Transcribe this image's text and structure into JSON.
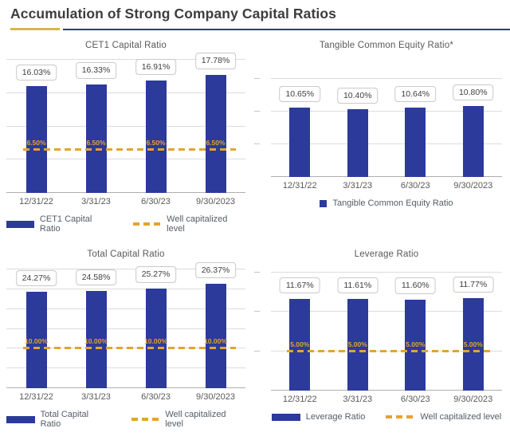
{
  "page": {
    "title": "Accumulation of Strong Company Capital Ratios"
  },
  "colors": {
    "bar": "#2b3a9b",
    "gold": "#e3a42f",
    "underline_gold": "#d9b64a",
    "underline_navy": "#2c3a8c"
  },
  "chart_data": [
    {
      "id": "cet1",
      "type": "bar",
      "title": "CET1 Capital Ratio",
      "categories": [
        "12/31/22",
        "3/31/23",
        "6/30/23",
        "9/30/2023"
      ],
      "values": [
        16.03,
        16.33,
        16.91,
        17.78
      ],
      "value_labels": [
        "16.03%",
        "16.33%",
        "16.91%",
        "17.78%"
      ],
      "ylim": [
        0,
        20
      ],
      "grid_step": 5,
      "grid": "on",
      "threshold": {
        "value": 6.5,
        "label": "6.50%"
      },
      "legend_position": "bottom",
      "legend": [
        {
          "swatch": "bar-wide",
          "label": "CET1 Capital Ratio"
        },
        {
          "swatch": "dash",
          "label": "Well capitalized level"
        }
      ]
    },
    {
      "id": "tce",
      "type": "bar",
      "title": "Tangible Common Equity Ratio*",
      "categories": [
        "12/31/22",
        "3/31/23",
        "6/30/23",
        "9/30/2023"
      ],
      "values": [
        10.65,
        10.4,
        10.64,
        10.8
      ],
      "value_labels": [
        "10.65%",
        "10.40%",
        "10.64%",
        "10.80%"
      ],
      "ylim": [
        0,
        15
      ],
      "grid_step": 5,
      "grid": "on",
      "threshold": null,
      "legend_position": "bottom",
      "legend": [
        {
          "swatch": "bar-square",
          "label": "Tangible Common Equity Ratio"
        }
      ]
    },
    {
      "id": "total",
      "type": "bar",
      "title": "Total Capital Ratio",
      "categories": [
        "12/31/22",
        "3/31/23",
        "6/30/23",
        "9/30/2023"
      ],
      "values": [
        24.27,
        24.58,
        25.27,
        26.37
      ],
      "value_labels": [
        "24.27%",
        "24.58%",
        "25.27%",
        "26.37%"
      ],
      "ylim": [
        0,
        30
      ],
      "grid_step": 5,
      "grid": "on",
      "threshold": {
        "value": 10,
        "label": "10.00%"
      },
      "legend_position": "bottom",
      "legend": [
        {
          "swatch": "bar-wide",
          "label": "Total Capital Ratio"
        },
        {
          "swatch": "dash",
          "label": "Well capitalized level"
        }
      ]
    },
    {
      "id": "leverage",
      "type": "bar",
      "title": "Leverage Ratio",
      "categories": [
        "12/31/22",
        "3/31/23",
        "6/30/23",
        "9/30/2023"
      ],
      "values": [
        11.67,
        11.61,
        11.6,
        11.77
      ],
      "value_labels": [
        "11.67%",
        "11.61%",
        "11.60%",
        "11.77%"
      ],
      "ylim": [
        0,
        15
      ],
      "grid_step": 5,
      "grid": "on",
      "threshold": {
        "value": 5,
        "label": "5.00%"
      },
      "legend_position": "bottom",
      "legend": [
        {
          "swatch": "bar-wide",
          "label": "Leverage Ratio"
        },
        {
          "swatch": "dash",
          "label": "Well capitalized level"
        }
      ]
    }
  ]
}
